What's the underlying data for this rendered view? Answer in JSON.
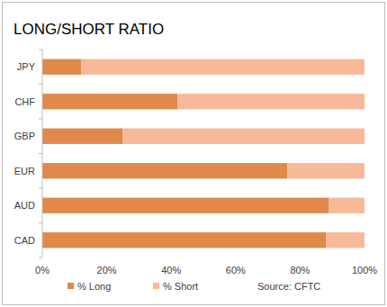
{
  "chart_data": {
    "type": "bar",
    "title": "LONG/SHORT RATIO",
    "orientation": "horizontal",
    "stacked": true,
    "categories": [
      "JPY",
      "CHF",
      "GBP",
      "EUR",
      "AUD",
      "CAD"
    ],
    "series": [
      {
        "name": "% Long",
        "color": "#e0894a",
        "values": [
          12,
          42,
          25,
          76,
          89,
          88
        ]
      },
      {
        "name": "% Short",
        "color": "#f8b999",
        "values": [
          88,
          58,
          75,
          24,
          11,
          12
        ]
      }
    ],
    "xlim": [
      0,
      100
    ],
    "xticks": [
      {
        "value": 0,
        "label": "0%"
      },
      {
        "value": 20,
        "label": "20%"
      },
      {
        "value": 40,
        "label": "40%"
      },
      {
        "value": 60,
        "label": "60%"
      },
      {
        "value": 80,
        "label": "80%"
      },
      {
        "value": 100,
        "label": "100%"
      }
    ],
    "grid": false,
    "legend": "bottom",
    "annotations": [
      "Source: CFTC"
    ]
  }
}
